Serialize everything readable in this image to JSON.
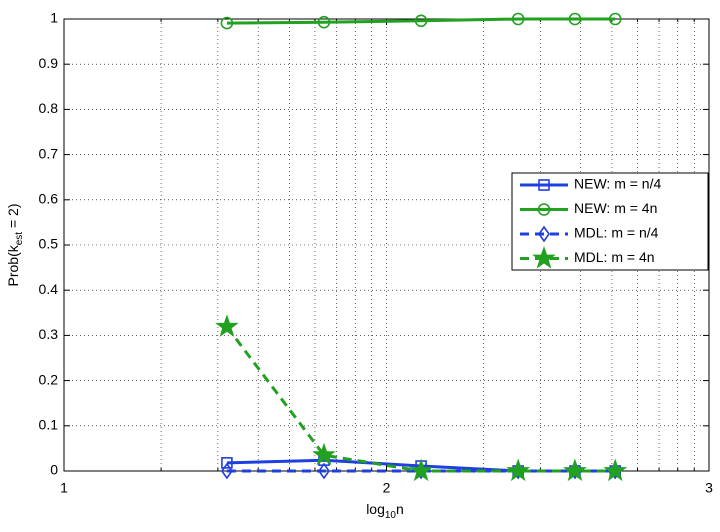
{
  "chart_data": {
    "type": "line",
    "xlabel": [
      "log",
      "10",
      "n"
    ],
    "ylabel": [
      "Prob(k",
      "est",
      " = 2)"
    ],
    "x": [
      32,
      64,
      128,
      256,
      384,
      512
    ],
    "xscale": "log",
    "xlim": [
      10,
      1000
    ],
    "xticks": [
      {
        "value": 10,
        "label": "1"
      },
      {
        "value": 100,
        "label": "2"
      },
      {
        "value": 1000,
        "label": "3"
      }
    ],
    "xminorticks": [
      20,
      30,
      40,
      50,
      60,
      70,
      80,
      90,
      200,
      300,
      400,
      500,
      600,
      700,
      800,
      900
    ],
    "ylim": [
      0,
      1
    ],
    "yticks": [
      0,
      0.1,
      0.2,
      0.3,
      0.4,
      0.5,
      0.6,
      0.7,
      0.8,
      0.9,
      1
    ],
    "grid": true,
    "legend": "right",
    "series": [
      {
        "name": "NEW: m = n/4",
        "color": "#1f3fe0",
        "dash": "solid",
        "marker": "square",
        "values": [
          0.018,
          0.024,
          0.011,
          0,
          0,
          0
        ]
      },
      {
        "name": "NEW: m = 4n",
        "color": "#22a020",
        "dash": "solid",
        "marker": "circle",
        "values": [
          0.991,
          0.993,
          0.996,
          1,
          1,
          1
        ]
      },
      {
        "name": "MDL: m = n/4",
        "color": "#1f3fe0",
        "dash": "dashed",
        "marker": "diamond",
        "values": [
          0,
          0,
          0,
          0,
          0,
          0
        ]
      },
      {
        "name": "MDL: m = 4n",
        "color": "#22a020",
        "dash": "dashed",
        "marker": "star",
        "values": [
          0.319,
          0.035,
          0,
          0,
          0,
          0
        ]
      }
    ]
  }
}
